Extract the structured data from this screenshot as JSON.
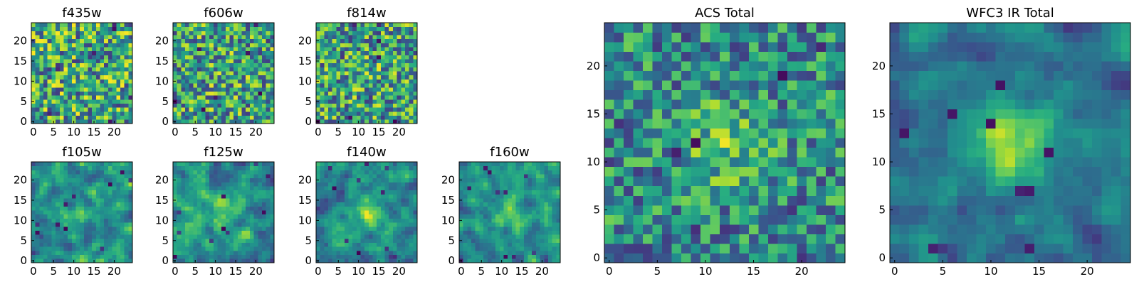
{
  "chart_data": {
    "type": "heatmap",
    "figure": "Multi-band image stamps (25x25 pixel cutouts) with colormap viridis",
    "colormap": "viridis",
    "panels": [
      {
        "id": "f435w",
        "title": "f435w",
        "group": "ACS",
        "grid": [
          25,
          25
        ],
        "xlim": [
          0,
          24
        ],
        "ylim": [
          0,
          24
        ],
        "xticks": [
          0,
          5,
          10,
          15,
          20
        ],
        "yticks": [
          0,
          5,
          10,
          15,
          20
        ],
        "seed": 11,
        "smooth": 0,
        "blob": 0.0
      },
      {
        "id": "f606w",
        "title": "f606w",
        "group": "ACS",
        "grid": [
          25,
          25
        ],
        "xlim": [
          0,
          24
        ],
        "ylim": [
          0,
          24
        ],
        "xticks": [
          0,
          5,
          10,
          15,
          20
        ],
        "yticks": [
          0,
          5,
          10,
          15,
          20
        ],
        "seed": 23,
        "smooth": 0,
        "blob": 0.05
      },
      {
        "id": "f814w",
        "title": "f814w",
        "group": "ACS",
        "grid": [
          25,
          25
        ],
        "xlim": [
          0,
          24
        ],
        "ylim": [
          0,
          24
        ],
        "xticks": [
          0,
          5,
          10,
          15,
          20
        ],
        "yticks": [
          0,
          5,
          10,
          15,
          20
        ],
        "seed": 37,
        "smooth": 0,
        "blob": 0.05
      },
      {
        "id": "f105w",
        "title": "f105w",
        "group": "WFC3 IR",
        "grid": [
          25,
          25
        ],
        "xlim": [
          0,
          24
        ],
        "ylim": [
          0,
          24
        ],
        "xticks": [
          0,
          5,
          10,
          15,
          20
        ],
        "yticks": [
          0,
          5,
          10,
          15,
          20
        ],
        "seed": 41,
        "smooth": 1,
        "blob": 0.15
      },
      {
        "id": "f125w",
        "title": "f125w",
        "group": "WFC3 IR",
        "grid": [
          25,
          25
        ],
        "xlim": [
          0,
          24
        ],
        "ylim": [
          0,
          24
        ],
        "xticks": [
          0,
          5,
          10,
          15,
          20
        ],
        "yticks": [
          0,
          5,
          10,
          15,
          20
        ],
        "seed": 53,
        "smooth": 1,
        "blob": 0.2
      },
      {
        "id": "f140w",
        "title": "f140w",
        "group": "WFC3 IR",
        "grid": [
          25,
          25
        ],
        "xlim": [
          0,
          24
        ],
        "ylim": [
          0,
          24
        ],
        "xticks": [
          0,
          5,
          10,
          15,
          20
        ],
        "yticks": [
          0,
          5,
          10,
          15,
          20
        ],
        "seed": 67,
        "smooth": 1,
        "blob": 0.3
      },
      {
        "id": "f160w",
        "title": "f160w",
        "group": "WFC3 IR",
        "grid": [
          25,
          25
        ],
        "xlim": [
          0,
          24
        ],
        "ylim": [
          0,
          24
        ],
        "xticks": [
          0,
          5,
          10,
          15,
          20
        ],
        "yticks": [
          0,
          5,
          10,
          15,
          20
        ],
        "seed": 79,
        "smooth": 1,
        "blob": 0.25
      },
      {
        "id": "acs-total",
        "title": "ACS Total",
        "group": "ACS",
        "grid": [
          25,
          25
        ],
        "xlim": [
          0,
          24
        ],
        "ylim": [
          0,
          24
        ],
        "xticks": [
          0,
          5,
          10,
          15,
          20
        ],
        "yticks": [
          0,
          5,
          10,
          15,
          20
        ],
        "seed": 97,
        "smooth": 0,
        "blob": 0.25
      },
      {
        "id": "wfc3-ir-total",
        "title": "WFC3 IR Total",
        "group": "WFC3 IR",
        "grid": [
          25,
          25
        ],
        "xlim": [
          0,
          24
        ],
        "ylim": [
          0,
          24
        ],
        "xticks": [
          0,
          5,
          10,
          15,
          20
        ],
        "yticks": [
          0,
          5,
          10,
          15,
          20
        ],
        "seed": 113,
        "smooth": 1,
        "blob": 0.45
      }
    ]
  }
}
